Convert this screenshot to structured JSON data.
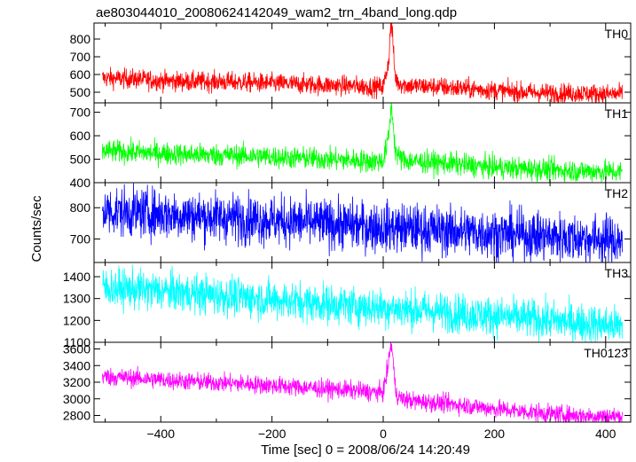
{
  "figure": {
    "title": "ae803044010_20080624142049_wam2_trn_4band_long.qdp",
    "xlabel": "Time [sec] 0 = 2008/06/24 14:20:49",
    "ylabel": "Counts/sec"
  },
  "chart_data": [
    {
      "type": "line",
      "title": "",
      "xlabel": "",
      "ylabel": "",
      "panel_label": "TH0",
      "color": "#ff0000",
      "xlim": [
        -520,
        445
      ],
      "ylim": [
        440,
        890
      ],
      "yticks": [
        500,
        600,
        700,
        800
      ],
      "xticks": [
        -400,
        -200,
        0,
        200,
        400
      ],
      "x_range": [
        -505,
        430
      ],
      "series": [
        {
          "x": [
            -505,
            -450,
            -400,
            -350,
            -300,
            -250,
            -200,
            -150,
            -100,
            -50,
            -20,
            0,
            5,
            10,
            13,
            15,
            18,
            20,
            22,
            25,
            30,
            40,
            60,
            100,
            150,
            200,
            250,
            300,
            350,
            400,
            430
          ],
          "values": [
            580,
            575,
            565,
            560,
            560,
            555,
            550,
            545,
            540,
            535,
            530,
            530,
            600,
            680,
            850,
            890,
            760,
            640,
            590,
            560,
            550,
            540,
            535,
            530,
            520,
            510,
            500,
            495,
            495,
            490,
            490
          ]
        }
      ],
      "noise": 28
    },
    {
      "type": "line",
      "title": "",
      "xlabel": "",
      "ylabel": "",
      "panel_label": "TH1",
      "color": "#00ff00",
      "xlim": [
        -520,
        445
      ],
      "ylim": [
        400,
        740
      ],
      "yticks": [
        400,
        500,
        600,
        700
      ],
      "xticks": [
        -400,
        -200,
        0,
        200,
        400
      ],
      "x_range": [
        -505,
        430
      ],
      "series": [
        {
          "x": [
            -505,
            -450,
            -400,
            -350,
            -300,
            -250,
            -200,
            -150,
            -100,
            -50,
            -20,
            0,
            5,
            10,
            13,
            15,
            18,
            20,
            22,
            25,
            30,
            40,
            60,
            100,
            150,
            200,
            250,
            300,
            350,
            400,
            430
          ],
          "values": [
            535,
            530,
            525,
            520,
            518,
            515,
            510,
            505,
            500,
            495,
            490,
            495,
            540,
            600,
            690,
            730,
            650,
            580,
            540,
            520,
            505,
            495,
            490,
            485,
            475,
            465,
            460,
            455,
            450,
            448,
            445
          ]
        }
      ],
      "noise": 24
    },
    {
      "type": "line",
      "title": "",
      "xlabel": "",
      "ylabel": "",
      "panel_label": "TH2",
      "color": "#0000ff",
      "xlim": [
        -520,
        445
      ],
      "ylim": [
        625,
        880
      ],
      "yticks": [
        700,
        800
      ],
      "xticks": [
        -400,
        -200,
        0,
        200,
        400
      ],
      "x_range": [
        -505,
        430
      ],
      "series": [
        {
          "x": [
            -505,
            -400,
            -300,
            -200,
            -100,
            0,
            100,
            200,
            300,
            400,
            430
          ],
          "values": [
            790,
            780,
            770,
            760,
            748,
            738,
            728,
            718,
            708,
            698,
            695
          ]
        }
      ],
      "noise": 40
    },
    {
      "type": "line",
      "title": "",
      "xlabel": "",
      "ylabel": "",
      "panel_label": "TH3",
      "color": "#00ffff",
      "xlim": [
        -520,
        445
      ],
      "ylim": [
        1100,
        1465
      ],
      "yticks": [
        1100,
        1200,
        1300,
        1400
      ],
      "xticks": [
        -400,
        -200,
        0,
        200,
        400
      ],
      "x_range": [
        -505,
        430
      ],
      "series": [
        {
          "x": [
            -505,
            -400,
            -300,
            -200,
            -100,
            0,
            100,
            200,
            300,
            400,
            430
          ],
          "values": [
            1350,
            1335,
            1315,
            1295,
            1275,
            1258,
            1240,
            1220,
            1200,
            1180,
            1175
          ]
        }
      ],
      "noise": 45
    },
    {
      "type": "line",
      "title": "",
      "xlabel": "",
      "ylabel": "",
      "panel_label": "TH0123",
      "color": "#ff00ff",
      "xlim": [
        -520,
        445
      ],
      "ylim": [
        2720,
        3680
      ],
      "yticks": [
        2800,
        3000,
        3200,
        3400,
        3600
      ],
      "xticks": [
        -400,
        -200,
        0,
        200,
        400
      ],
      "x_range": [
        -505,
        430
      ],
      "series": [
        {
          "x": [
            -505,
            -450,
            -400,
            -350,
            -300,
            -250,
            -200,
            -150,
            -100,
            -50,
            -20,
            0,
            5,
            10,
            13,
            15,
            18,
            20,
            22,
            25,
            30,
            40,
            60,
            100,
            150,
            200,
            250,
            300,
            350,
            400,
            430
          ],
          "values": [
            3270,
            3250,
            3230,
            3210,
            3195,
            3180,
            3160,
            3140,
            3120,
            3100,
            3080,
            3080,
            3250,
            3450,
            3620,
            3650,
            3450,
            3250,
            3120,
            3050,
            3010,
            2990,
            2970,
            2950,
            2920,
            2880,
            2850,
            2820,
            2800,
            2790,
            2790
          ]
        }
      ],
      "noise": 55
    }
  ]
}
